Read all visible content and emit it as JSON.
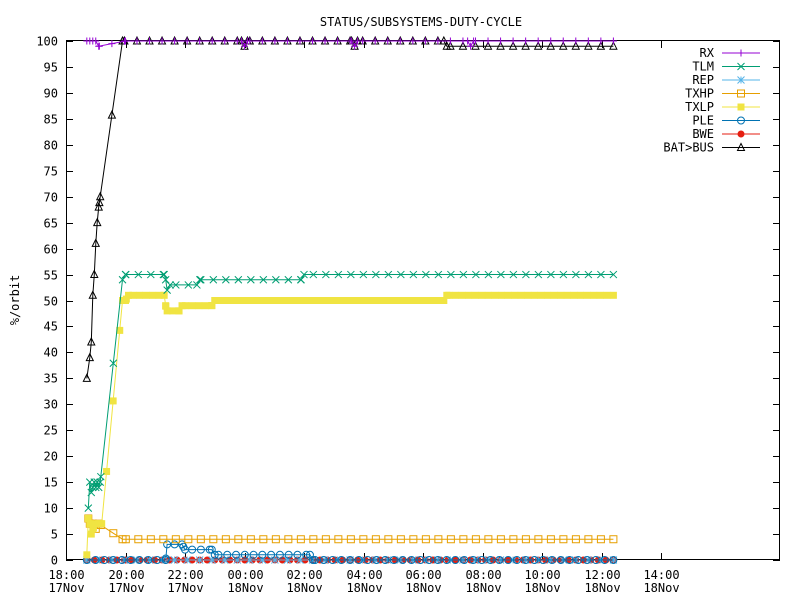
{
  "chart_data": {
    "type": "line",
    "title": "STATUS/SUBSYSTEMS-DUTY-CYCLE",
    "xlabel": "",
    "ylabel": "%/orbit",
    "ylim": [
      0,
      100
    ],
    "xlim_hours": [
      18,
      42
    ],
    "yticks": [
      0,
      5,
      10,
      15,
      20,
      25,
      30,
      35,
      40,
      45,
      50,
      55,
      60,
      65,
      70,
      75,
      80,
      85,
      90,
      95,
      100
    ],
    "xticks": [
      {
        "h": 18,
        "time": "18:00",
        "date": "17Nov"
      },
      {
        "h": 20,
        "time": "20:00",
        "date": "17Nov"
      },
      {
        "h": 22,
        "time": "22:00",
        "date": "17Nov"
      },
      {
        "h": 24,
        "time": "00:00",
        "date": "18Nov"
      },
      {
        "h": 26,
        "time": "02:00",
        "date": "18Nov"
      },
      {
        "h": 28,
        "time": "04:00",
        "date": "18Nov"
      },
      {
        "h": 30,
        "time": "06:00",
        "date": "18Nov"
      },
      {
        "h": 32,
        "time": "08:00",
        "date": "18Nov"
      },
      {
        "h": 34,
        "time": "10:00",
        "date": "18Nov"
      },
      {
        "h": 36,
        "time": "12:00",
        "date": "18Nov"
      },
      {
        "h": 38,
        "time": "14:00",
        "date": "18Nov"
      }
    ],
    "grid": false,
    "legend_position": "top-right",
    "series": [
      {
        "name": "RX",
        "color": "#9400d3",
        "marker": "plus",
        "density": 42,
        "points": [
          [
            18.7,
            100
          ],
          [
            18.8,
            100
          ],
          [
            18.9,
            100
          ],
          [
            19.0,
            100
          ],
          [
            19.1,
            99
          ],
          [
            20.0,
            100
          ],
          [
            23.9,
            100
          ],
          [
            24.0,
            99
          ],
          [
            24.1,
            100
          ],
          [
            27.6,
            100
          ],
          [
            27.7,
            99
          ],
          [
            27.8,
            100
          ],
          [
            31.5,
            100
          ],
          [
            31.6,
            99
          ],
          [
            31.7,
            100
          ],
          [
            36.4,
            100
          ]
        ]
      },
      {
        "name": "TLM",
        "color": "#009e73",
        "marker": "x",
        "density": 42,
        "points": [
          [
            18.75,
            10
          ],
          [
            18.8,
            15
          ],
          [
            18.85,
            13
          ],
          [
            18.9,
            14
          ],
          [
            18.95,
            15
          ],
          [
            19.0,
            14
          ],
          [
            19.05,
            15
          ],
          [
            19.1,
            14
          ],
          [
            19.15,
            15
          ],
          [
            19.9,
            54
          ],
          [
            20.0,
            55
          ],
          [
            21.3,
            55
          ],
          [
            21.35,
            54
          ],
          [
            21.4,
            52
          ],
          [
            21.5,
            53
          ],
          [
            22.4,
            53
          ],
          [
            22.5,
            54
          ],
          [
            25.9,
            54
          ],
          [
            26.0,
            55
          ],
          [
            36.4,
            55
          ]
        ]
      },
      {
        "name": "REP",
        "color": "#56b4e9",
        "marker": "asterisk",
        "density": 42,
        "points": [
          [
            18.7,
            0
          ],
          [
            36.4,
            0
          ]
        ]
      },
      {
        "name": "TXHP",
        "color": "#e69f00",
        "marker": "square",
        "density": 42,
        "points": [
          [
            18.75,
            8
          ],
          [
            18.8,
            7
          ],
          [
            18.9,
            7
          ],
          [
            19.0,
            6
          ],
          [
            19.1,
            7
          ],
          [
            19.9,
            4
          ],
          [
            36.4,
            4
          ]
        ]
      },
      {
        "name": "TXLP",
        "color": "#f0e442",
        "marker": "fsquare",
        "density": 80,
        "points": [
          [
            18.7,
            1
          ],
          [
            18.75,
            8
          ],
          [
            18.8,
            7
          ],
          [
            18.85,
            5
          ],
          [
            18.9,
            6
          ],
          [
            19.0,
            7
          ],
          [
            19.1,
            7
          ],
          [
            19.2,
            7
          ],
          [
            19.9,
            50
          ],
          [
            20.0,
            50
          ],
          [
            20.1,
            51
          ],
          [
            21.3,
            51
          ],
          [
            21.35,
            49
          ],
          [
            21.4,
            48
          ],
          [
            21.8,
            48
          ],
          [
            21.9,
            49
          ],
          [
            22.9,
            49
          ],
          [
            23.0,
            50
          ],
          [
            30.7,
            50
          ],
          [
            30.8,
            51
          ],
          [
            36.4,
            51
          ]
        ]
      },
      {
        "name": "PLE",
        "color": "#0072b2",
        "marker": "circle",
        "density": 60,
        "points": [
          [
            18.7,
            0
          ],
          [
            21.35,
            0
          ],
          [
            21.4,
            3
          ],
          [
            21.9,
            3
          ],
          [
            22.0,
            2
          ],
          [
            22.9,
            2
          ],
          [
            23.0,
            1
          ],
          [
            26.2,
            1
          ],
          [
            26.3,
            0
          ],
          [
            36.4,
            0
          ]
        ]
      },
      {
        "name": "BWE",
        "color": "#e51e10",
        "marker": "fcircle",
        "density": 70,
        "points": [
          [
            18.7,
            0
          ],
          [
            19.0,
            0
          ],
          [
            20.0,
            0
          ],
          [
            36.4,
            0
          ]
        ]
      },
      {
        "name": "BAT>BUS",
        "color": "#000000",
        "marker": "triangle",
        "density": 42,
        "points": [
          [
            18.7,
            35
          ],
          [
            18.8,
            39
          ],
          [
            18.85,
            42
          ],
          [
            18.9,
            51
          ],
          [
            18.95,
            55
          ],
          [
            19.0,
            61
          ],
          [
            19.05,
            65
          ],
          [
            19.1,
            68
          ],
          [
            19.15,
            70
          ],
          [
            19.9,
            100
          ],
          [
            23.9,
            100
          ],
          [
            24.0,
            99
          ],
          [
            24.1,
            100
          ],
          [
            27.6,
            100
          ],
          [
            27.7,
            99
          ],
          [
            27.8,
            100
          ],
          [
            30.7,
            100
          ],
          [
            30.8,
            99
          ],
          [
            36.4,
            99
          ]
        ]
      }
    ]
  }
}
